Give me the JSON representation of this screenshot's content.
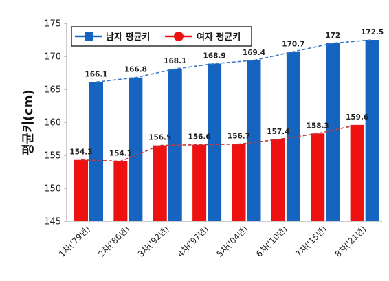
{
  "chart_data": {
    "type": "bar",
    "categories": [
      "1차('79년)",
      "2차('86년)",
      "3차('92년)",
      "4차('97년)",
      "5차('04년)",
      "6차('10년)",
      "7차('15년)",
      "8차('21년)"
    ],
    "series": [
      {
        "name": "남자 평균키",
        "values": [
          166.1,
          166.8,
          168.1,
          168.9,
          169.4,
          170.7,
          172,
          172.5
        ],
        "labels": [
          "166.1",
          "166.8",
          "168.1",
          "168.9",
          "169.4",
          "170.7",
          "172",
          "172.5"
        ],
        "color": "#1565C0",
        "trend_color": "#3A78C9"
      },
      {
        "name": "여자 평균키",
        "values": [
          154.3,
          154.1,
          156.5,
          156.6,
          156.7,
          157.4,
          158.3,
          159.6
        ],
        "labels": [
          "154.3",
          "154.1",
          "156.5",
          "156.6",
          "156.7",
          "157.4",
          "158.3",
          "159.6"
        ],
        "color": "#EE1111",
        "trend_color": "#C0393B"
      }
    ],
    "xlabel": "",
    "ylabel": "평균키(cm)",
    "ylim": [
      145,
      175
    ],
    "yticks": [
      145,
      150,
      155,
      160,
      165,
      170,
      175
    ],
    "grid": false,
    "legend": "top-left",
    "trend_lines": "dashed"
  }
}
